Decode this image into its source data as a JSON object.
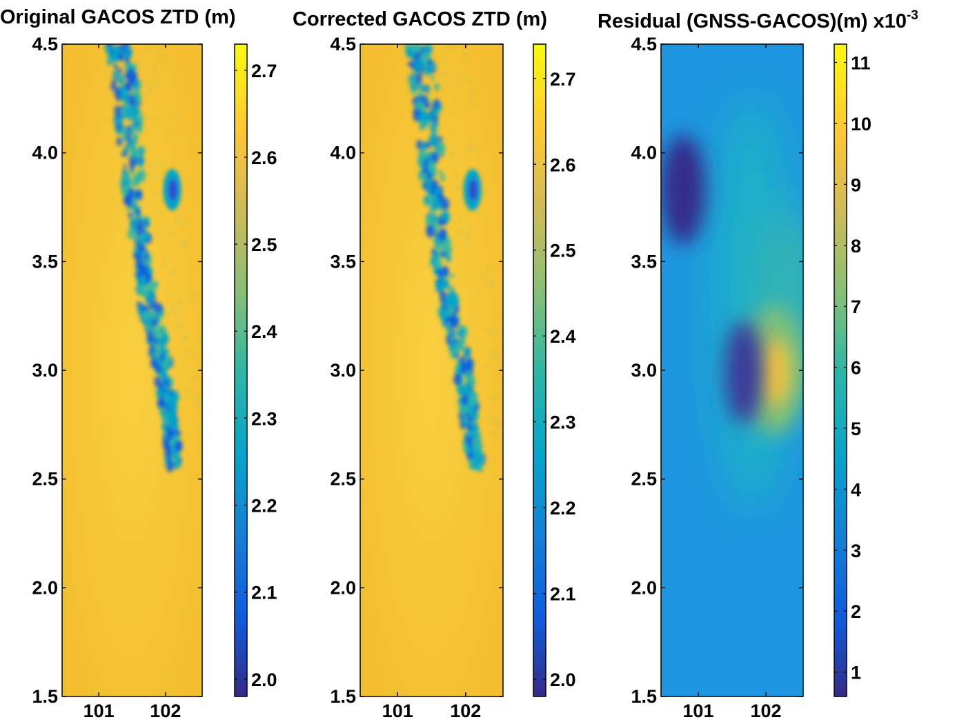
{
  "figure_description": "Three heatmap panels of zenith tropospheric delay",
  "colors": {
    "parula": [
      "#352a87",
      "#0f5cdd",
      "#1481d6",
      "#06a4ca",
      "#2eb7a4",
      "#87bf77",
      "#d1bb59",
      "#fec832",
      "#f9fb0e"
    ],
    "field_background": "#f5c431",
    "blob_low": "#0f5cdd",
    "blob_mid": "#06a4ca"
  },
  "chart_data": [
    {
      "type": "heatmap",
      "title": "Original GACOS ZTD (m)",
      "x_ticks": [
        "101",
        "102"
      ],
      "x_tick_values": [
        101,
        102
      ],
      "xlim": [
        100.45,
        102.55
      ],
      "y_ticks": [
        "4.5",
        "4.0",
        "3.5",
        "3.0",
        "2.5",
        "2.0",
        "1.5"
      ],
      "y_tick_values": [
        4.5,
        4.0,
        3.5,
        3.0,
        2.5,
        2.0,
        1.5
      ],
      "ylim": [
        1.5,
        4.5
      ],
      "colorbar": {
        "range": [
          1.98,
          2.73
        ],
        "ticks": [
          "2.7",
          "2.6",
          "2.5",
          "2.4",
          "2.3",
          "2.2",
          "2.1",
          "2.0"
        ],
        "tick_values": [
          2.7,
          2.6,
          2.5,
          2.4,
          2.3,
          2.2,
          2.1,
          2.0
        ]
      },
      "field": {
        "background_value": 2.65,
        "features": [
          {
            "kind": "band",
            "description": "low-ZTD cloud band",
            "path": [
              [
                101.3,
                4.5
              ],
              [
                101.45,
                4.2
              ],
              [
                101.5,
                3.9
              ],
              [
                101.62,
                3.6
              ],
              [
                101.75,
                3.3
              ],
              [
                101.95,
                3.05
              ],
              [
                102.05,
                2.8
              ],
              [
                102.15,
                2.55
              ]
            ],
            "value": 2.25
          },
          {
            "kind": "spot",
            "lon": 102.1,
            "lat": 3.83,
            "value": 2.15
          }
        ]
      }
    },
    {
      "type": "heatmap",
      "title": "Corrected GACOS ZTD (m)",
      "x_ticks": [
        "101",
        "102"
      ],
      "x_tick_values": [
        101,
        102
      ],
      "xlim": [
        100.45,
        102.55
      ],
      "y_ticks": [
        "4.5",
        "4.0",
        "3.5",
        "3.0",
        "2.5",
        "2.0",
        "1.5"
      ],
      "y_tick_values": [
        4.5,
        4.0,
        3.5,
        3.0,
        2.5,
        2.0,
        1.5
      ],
      "ylim": [
        1.5,
        4.5
      ],
      "colorbar": {
        "range": [
          1.98,
          2.74
        ],
        "ticks": [
          "2.7",
          "2.6",
          "2.5",
          "2.4",
          "2.3",
          "2.2",
          "2.1",
          "2.0"
        ],
        "tick_values": [
          2.7,
          2.6,
          2.5,
          2.4,
          2.3,
          2.2,
          2.1,
          2.0
        ]
      },
      "field": {
        "background_value": 2.66,
        "features": [
          {
            "kind": "band",
            "description": "low-ZTD cloud band",
            "path": [
              [
                101.3,
                4.5
              ],
              [
                101.45,
                4.2
              ],
              [
                101.5,
                3.9
              ],
              [
                101.62,
                3.6
              ],
              [
                101.75,
                3.3
              ],
              [
                101.95,
                3.05
              ],
              [
                102.05,
                2.8
              ],
              [
                102.15,
                2.55
              ]
            ],
            "value": 2.26
          },
          {
            "kind": "spot",
            "lon": 102.1,
            "lat": 3.83,
            "value": 2.16
          }
        ]
      }
    },
    {
      "type": "heatmap",
      "title": "Residual (GNSS-GACOS)(m) x10",
      "title_superscript": "-3",
      "x_ticks": [
        "101",
        "102"
      ],
      "x_tick_values": [
        101,
        102
      ],
      "xlim": [
        100.45,
        102.55
      ],
      "y_ticks": [
        "4.5",
        "4.0",
        "3.5",
        "3.0",
        "2.5",
        "2.0",
        "1.5"
      ],
      "y_tick_values": [
        4.5,
        4.0,
        3.5,
        3.0,
        2.5,
        2.0,
        1.5
      ],
      "ylim": [
        1.5,
        4.5
      ],
      "colorbar": {
        "range": [
          0.6,
          11.3
        ],
        "ticks": [
          "11",
          "10",
          "9",
          "8",
          "7",
          "6",
          "5",
          "4",
          "3",
          "2",
          "1"
        ],
        "tick_values": [
          11,
          10,
          9,
          8,
          7,
          6,
          5,
          4,
          3,
          2,
          1
        ]
      },
      "field": {
        "background_value": 4.3,
        "features": [
          {
            "kind": "minimum",
            "lon": 100.78,
            "lat": 3.82,
            "value": 1.0
          },
          {
            "kind": "minimum",
            "lon": 101.72,
            "lat": 2.99,
            "value": 1.5
          },
          {
            "kind": "maximum",
            "lon": 102.18,
            "lat": 2.99,
            "value": 10.8
          },
          {
            "kind": "ridge",
            "lon": 102.05,
            "lat": 3.6,
            "value": 6.5
          }
        ]
      }
    }
  ]
}
